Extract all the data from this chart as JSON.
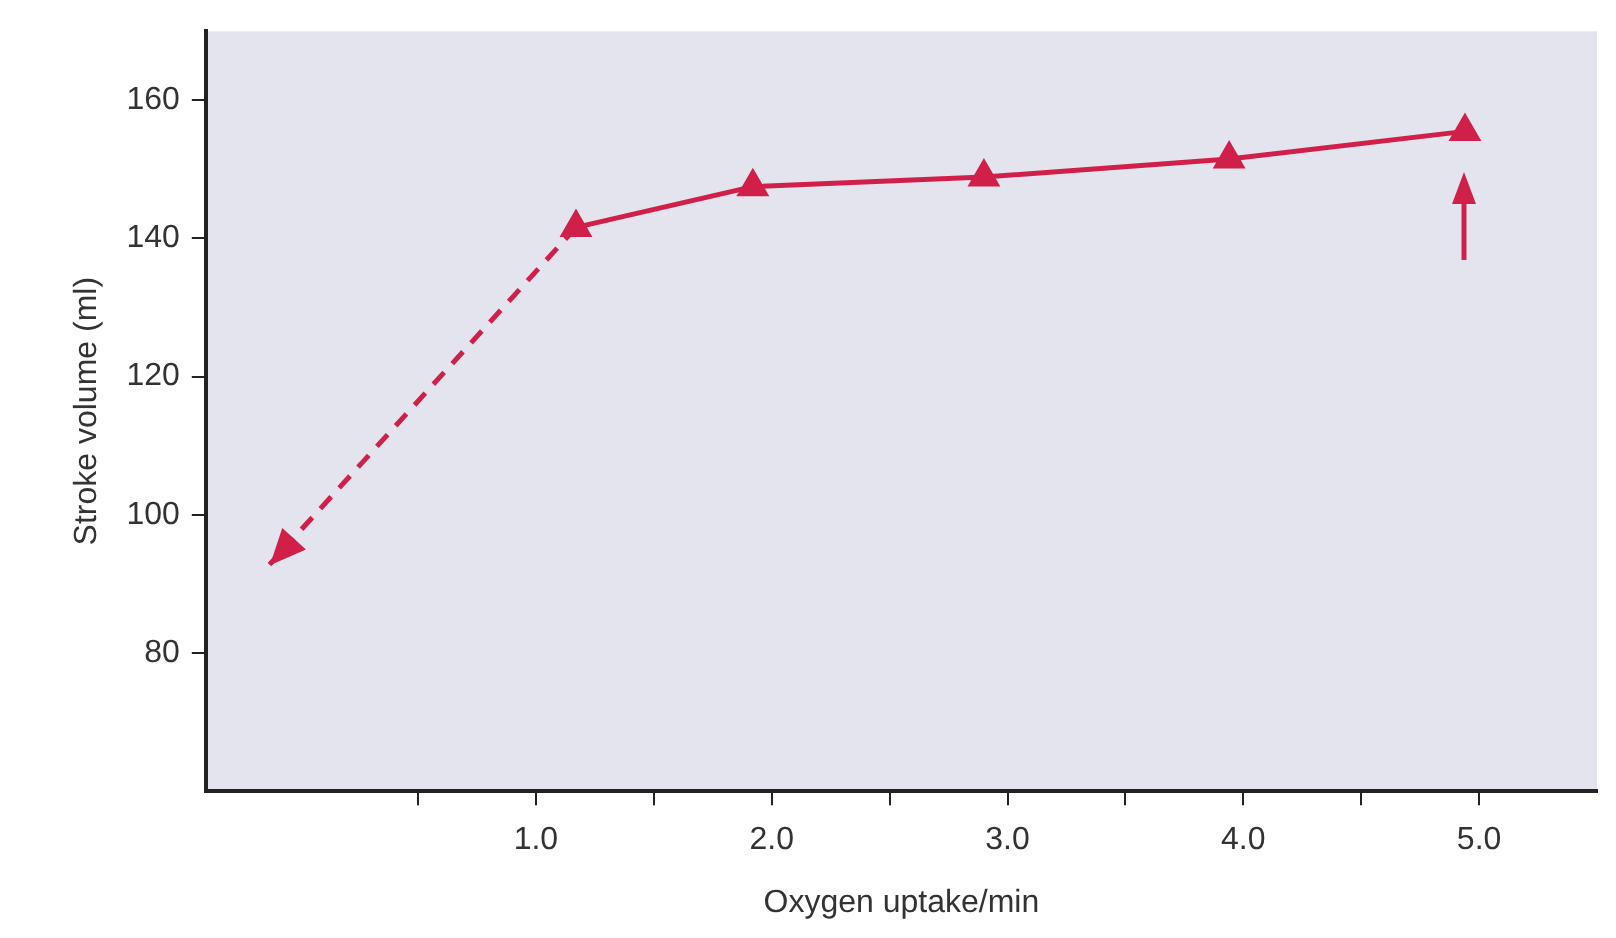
{
  "chart_data": {
    "type": "line",
    "xlabel": "Oxygen uptake/min",
    "ylabel": "Stroke volume (ml)",
    "xlim": [
      -0.4,
      5.5
    ],
    "xticks": [
      {
        "value": 0.5,
        "label": null
      },
      {
        "value": 1,
        "label": "1.0"
      },
      {
        "value": 1.5,
        "label": null
      },
      {
        "value": 2,
        "label": "2.0"
      },
      {
        "value": 2.5,
        "label": null
      },
      {
        "value": 3,
        "label": "3.0"
      },
      {
        "value": 3.5,
        "label": null
      },
      {
        "value": 4,
        "label": "4.0"
      },
      {
        "value": 4.5,
        "label": null
      },
      {
        "value": 5,
        "label": "5.0"
      }
    ],
    "ylim": [
      60,
      170
    ],
    "yticks": [
      80,
      100,
      120,
      140,
      160
    ],
    "grid": false,
    "legend": false,
    "series": [
      {
        "color": "#d0204a",
        "x": [
          1.17,
          1.92,
          2.9,
          3.94,
          4.94
        ],
        "values": [
          141.6,
          147.5,
          148.9,
          151.5,
          155.5
        ],
        "marker": "triangle",
        "line_style": "solid"
      },
      {
        "color": "#d0204a",
        "x": [
          1.17,
          -0.13
        ],
        "values": [
          141.6,
          92.8
        ],
        "marker": "none",
        "line_style": "dashed"
      }
    ]
  }
}
